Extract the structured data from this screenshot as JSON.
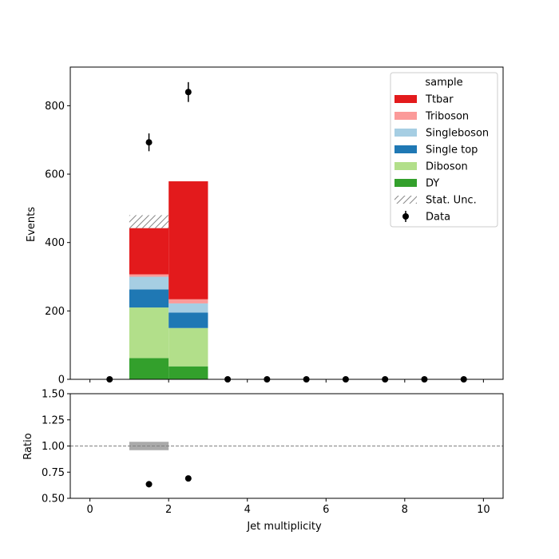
{
  "chart_data": [
    {
      "type": "bar",
      "stacked": true,
      "xlabel": "",
      "ylabel": "Events",
      "xlim": [
        -0.5,
        10.5
      ],
      "ylim": [
        0,
        913
      ],
      "yticks": [
        0,
        200,
        400,
        600,
        800
      ],
      "xticks": [
        0,
        2,
        4,
        6,
        8,
        10
      ],
      "show_x_tick_labels": false,
      "grid": false,
      "legend": {
        "title": "sample",
        "placement": "top-right"
      },
      "bin_edges": [
        1,
        2,
        3
      ],
      "series": [
        {
          "name": "DY",
          "color": "#33a02c",
          "values": [
            62,
            38
          ]
        },
        {
          "name": "Diboson",
          "color": "#b2df8a",
          "values": [
            148,
            112
          ]
        },
        {
          "name": "Single top",
          "color": "#1f78b4",
          "values": [
            53,
            45
          ]
        },
        {
          "name": "Singleboson",
          "color": "#a6cee3",
          "values": [
            37,
            27
          ]
        },
        {
          "name": "Triboson",
          "color": "#fb9a99",
          "values": [
            7,
            12
          ]
        },
        {
          "name": "Ttbar",
          "color": "#e31a1c",
          "values": [
            135,
            345
          ]
        }
      ],
      "stat_unc": {
        "name": "Stat. Unc.",
        "color": "#888888",
        "bins": [
          [
            1,
            2,
            442,
            480
          ]
        ]
      },
      "data": {
        "name": "Data",
        "color": "#000000",
        "x": [
          0.5,
          1.5,
          2.5,
          3.5,
          4.5,
          5.5,
          6.5,
          7.5,
          8.5,
          9.5
        ],
        "y": [
          0,
          693,
          840,
          0,
          0,
          0,
          0,
          0,
          0,
          0
        ],
        "yerr": [
          0,
          26,
          29,
          0,
          0,
          0,
          0,
          0,
          0,
          0
        ]
      }
    },
    {
      "type": "scatter",
      "xlabel": "Jet multiplicity",
      "ylabel": "Ratio",
      "xlim": [
        -0.5,
        10.5
      ],
      "ylim": [
        0.5,
        1.5
      ],
      "yticks": [
        "0.50",
        "0.75",
        "1.00",
        "1.25",
        "1.50"
      ],
      "xticks": [
        "0",
        "2",
        "4",
        "6",
        "8",
        "10"
      ],
      "reference_line": 1.0,
      "grid": false,
      "unc_band": {
        "color": "#aaaaaa",
        "bins": [
          [
            1,
            2,
            0.96,
            1.04
          ]
        ]
      },
      "points": {
        "x": [
          1.5,
          2.5
        ],
        "y": [
          0.635,
          0.69
        ],
        "yerr": [
          0.03,
          0.02
        ]
      }
    }
  ]
}
